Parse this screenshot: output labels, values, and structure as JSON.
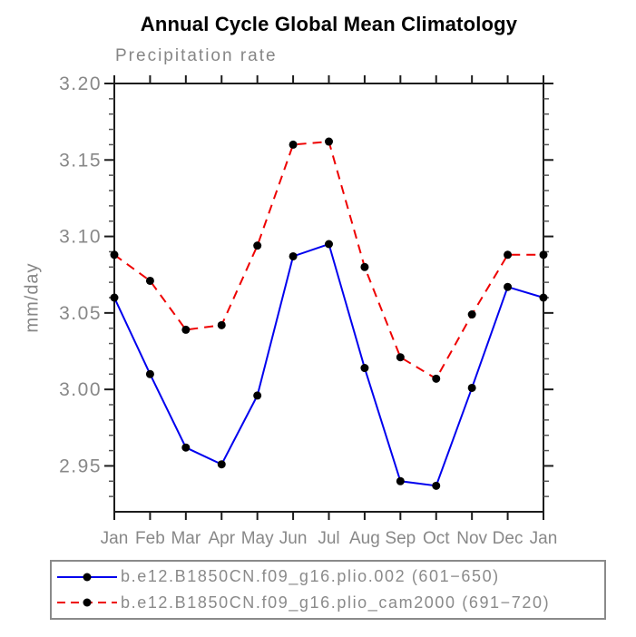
{
  "chart_data": {
    "type": "line",
    "title": "Annual Cycle Global Mean Climatology",
    "subtitle": "Precipitation rate",
    "xlabel": "",
    "ylabel": "mm/day",
    "categories": [
      "Jan",
      "Feb",
      "Mar",
      "Apr",
      "May",
      "Jun",
      "Jul",
      "Aug",
      "Sep",
      "Oct",
      "Nov",
      "Dec",
      "Jan"
    ],
    "ylim": [
      2.92,
      3.2
    ],
    "ytick_values": [
      2.95,
      3.0,
      3.05,
      3.1,
      3.15,
      3.2
    ],
    "ytick_labels": [
      "2.95",
      "3.00",
      "3.05",
      "3.10",
      "3.15",
      "3.20"
    ],
    "ytick_minor_step": 0.01,
    "grid": false,
    "legend_position": "bottom",
    "series": [
      {
        "label": "b.e12.B1850CN.f09_g16.plio.002 (601−650)",
        "color": "#0000ee",
        "style": "solid",
        "marker": "filled-circle",
        "values": [
          3.06,
          3.01,
          2.962,
          2.951,
          2.996,
          3.087,
          3.095,
          3.014,
          2.94,
          2.937,
          3.001,
          3.067,
          3.06
        ]
      },
      {
        "label": "b.e12.B1850CN.f09_g16.plio_cam2000 (691−720)",
        "color": "#ee0000",
        "style": "dashed",
        "marker": "filled-circle",
        "values": [
          3.088,
          3.071,
          3.039,
          3.042,
          3.094,
          3.16,
          3.162,
          3.08,
          3.021,
          3.007,
          3.049,
          3.088,
          3.088
        ]
      }
    ],
    "marker_color": "#000000",
    "axis_color": "#1c1c1c",
    "minor_tick_color": "#555555",
    "label_color": "#888888"
  }
}
